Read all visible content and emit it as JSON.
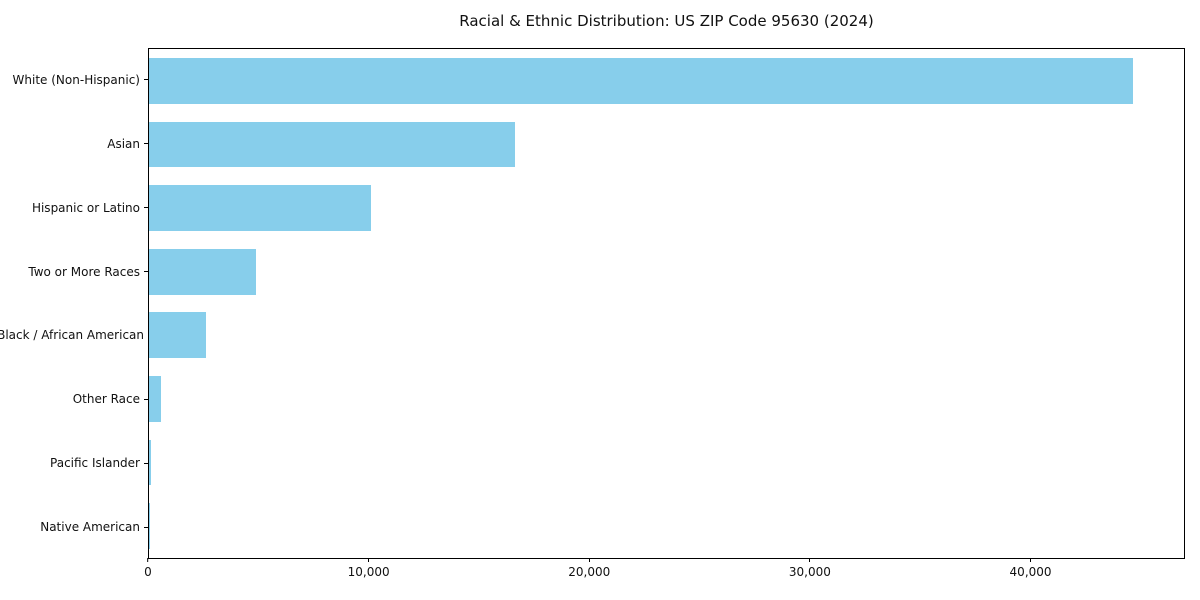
{
  "title": "Racial & Ethnic Distribution: US ZIP Code 95630 (2024)",
  "chart_data": {
    "type": "bar",
    "orientation": "horizontal",
    "title": "Racial & Ethnic Distribution: US ZIP Code 95630 (2024)",
    "xlabel": "",
    "ylabel": "",
    "categories": [
      "White (Non-Hispanic)",
      "Asian",
      "Hispanic or Latino",
      "Two or More Races",
      "Black / African American",
      "Other Race",
      "Pacific Islander",
      "Native American"
    ],
    "values": [
      44700,
      16600,
      10100,
      4850,
      2600,
      550,
      100,
      50
    ],
    "xlim": [
      0,
      47000
    ],
    "x_ticks": [
      0,
      10000,
      20000,
      30000,
      40000
    ],
    "x_tick_labels": [
      "0",
      "10,000",
      "20,000",
      "30,000",
      "40,000"
    ],
    "bar_color": "#87CEEB",
    "background_color": "#ffffff",
    "frame_color": "#000000",
    "grid": false,
    "legend": false
  }
}
